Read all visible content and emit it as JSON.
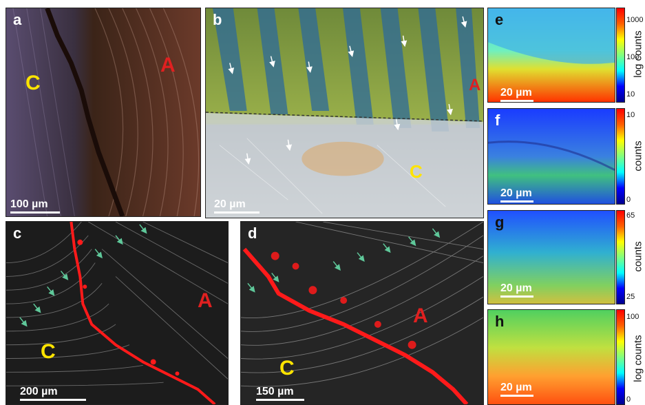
{
  "figure": {
    "panels": [
      {
        "id": "a",
        "label": "a",
        "regions": [
          "C",
          "A"
        ],
        "scale": "100 µm"
      },
      {
        "id": "b",
        "label": "b",
        "regions": [
          "A",
          "C"
        ],
        "scale": "20 µm"
      },
      {
        "id": "c",
        "label": "c",
        "regions": [
          "A",
          "C"
        ],
        "scale": "200 µm"
      },
      {
        "id": "d",
        "label": "d",
        "regions": [
          "A",
          "C"
        ],
        "scale": "150 µm"
      },
      {
        "id": "e",
        "label": "e",
        "scale": "20 µm",
        "colorbar": {
          "title": "log counts",
          "ticks": [
            "1000",
            "100",
            "10"
          ]
        }
      },
      {
        "id": "f",
        "label": "f",
        "scale": "20 µm",
        "colorbar": {
          "title": "counts",
          "ticks": [
            "10",
            "0"
          ]
        }
      },
      {
        "id": "g",
        "label": "g",
        "scale": "20 µm",
        "colorbar": {
          "title": "counts",
          "ticks": [
            "65",
            "25"
          ]
        }
      },
      {
        "id": "h",
        "label": "h",
        "scale": "20 µm",
        "colorbar": {
          "title": "log counts",
          "ticks": [
            "100",
            "0"
          ]
        }
      }
    ]
  },
  "colors": {
    "regionA": "#e02020",
    "regionC": "#ffe400",
    "boundary": "#ff1a1a",
    "arrows": "#5fc89a"
  }
}
